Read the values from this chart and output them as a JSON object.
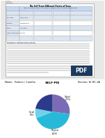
{
  "title": "The Self From Different Points of View",
  "subtitle": "Examine the different characteristics, compare, and describe themselves and how others see the self",
  "name_label": "Name:  Fedora I. Camiña",
  "section_label": "Section: EL BC-1A",
  "pie_title": "SELF-PIE",
  "pie_slices": [
    {
      "label": "Digital\n(27%)",
      "value": 27,
      "color": "#7b6bb5"
    },
    {
      "label": "Physical\n(42%)",
      "value": 42,
      "color": "#29b9d8"
    },
    {
      "label": "Social\n(9%)",
      "value": 9,
      "color": "#6dd4e8"
    },
    {
      "label": "",
      "value": 22,
      "color": "#2d3a8c"
    }
  ],
  "pie_startangle": 90,
  "bg_color": "#ffffff",
  "pdf_badge_color": "#1c3a5c",
  "pdf_badge_text_color": "#ffffff",
  "table_header_color": "#c5d9f1",
  "table_alt_color": "#dce6f1",
  "doc_paper_color": "#ffffff",
  "doc_border_color": "#aaaaaa"
}
